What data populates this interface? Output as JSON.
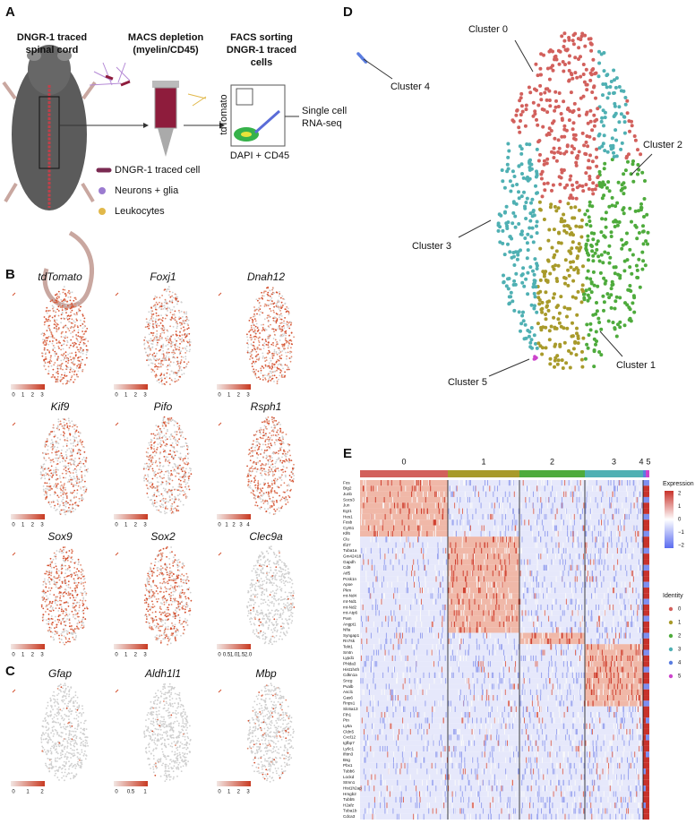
{
  "panel_a": {
    "letter": "A",
    "steps": [
      [
        "DNGR-1 traced",
        "spinal cord"
      ],
      [
        "MACS depletion",
        "(myelin/CD45)"
      ],
      [
        "FACS sorting",
        "DNGR-1 traced",
        "cells"
      ]
    ],
    "facs_y": "tdTomato",
    "facs_x": "DAPI + CD45",
    "output": [
      "Single cell",
      "RNA-seq"
    ],
    "legend": [
      "DNGR-1 traced cell",
      "Neurons + glia",
      "Leukocytes"
    ]
  },
  "panel_b": {
    "letter": "B",
    "genes": [
      {
        "name": "tdTomato",
        "scale": [
          "0",
          "1",
          "2",
          "3"
        ]
      },
      {
        "name": "Foxj1",
        "scale": [
          "0",
          "1",
          "2",
          "3"
        ]
      },
      {
        "name": "Dnah12",
        "scale": [
          "0",
          "1",
          "2",
          "3"
        ]
      },
      {
        "name": "Kif9",
        "scale": [
          "0",
          "1",
          "2",
          "3"
        ]
      },
      {
        "name": "Pifo",
        "scale": [
          "0",
          "1",
          "2",
          "3"
        ]
      },
      {
        "name": "Rsph1",
        "scale": [
          "0",
          "1",
          "2",
          "3",
          "4"
        ]
      },
      {
        "name": "Sox9",
        "scale": [
          "0",
          "1",
          "2",
          "3"
        ]
      },
      {
        "name": "Sox2",
        "scale": [
          "0",
          "1",
          "2",
          "3"
        ]
      },
      {
        "name": "Clec9a",
        "scale": [
          "0",
          "0.5",
          "1.0",
          "1.5",
          "2.0"
        ]
      }
    ]
  },
  "panel_c": {
    "letter": "C",
    "genes": [
      {
        "name": "Gfap",
        "scale": [
          "0",
          "1",
          "2"
        ]
      },
      {
        "name": "Aldh1l1",
        "scale": [
          "0",
          "0.5",
          "1"
        ]
      },
      {
        "name": "Mbp",
        "scale": [
          "0",
          "1",
          "2",
          "3"
        ]
      }
    ]
  },
  "panel_d": {
    "letter": "D",
    "clusters": [
      "Cluster 0",
      "Cluster 1",
      "Cluster 2",
      "Cluster 3",
      "Cluster 4",
      "Cluster 5"
    ]
  },
  "panel_e": {
    "letter": "E",
    "groups": [
      "0",
      "1",
      "2",
      "3",
      "4",
      "5"
    ],
    "genes": [
      "Fos",
      "Btg2",
      "Junb",
      "Socs3",
      "Jun",
      "Egr1",
      "Hes1",
      "Fosb",
      "Cyr61",
      "Klf6",
      "Clu",
      "Ifi27",
      "Tuba1a",
      "Gm42418",
      "Gapdh",
      "Cd9",
      "Atf5",
      "Pcsk1n",
      "Apoe",
      "Pkm",
      "mt-Nd4",
      "mt-Nd1",
      "mt-Nd2",
      "mt-Atp6",
      "Pam",
      "Angpt1",
      "Nfia",
      "Syngap1",
      "Rn7sk",
      "Tekt1",
      "Smtn",
      "Lypd1",
      "Phlda3",
      "Hist1h4h",
      "Cdkn1a",
      "Sncg",
      "Pvalb",
      "Ascl1",
      "Gas6",
      "Rnps1",
      "Slc6a13",
      "Fth1",
      "Ptn",
      "Ly6a",
      "Cldn5",
      "Cxcl12",
      "Igfbp7",
      "Ly6c1",
      "Ifitm3",
      "Bsg",
      "Pbx1",
      "Tubb6",
      "Lockd",
      "Stmn1",
      "Hist1h2ap",
      "Hmgb2",
      "Tubb5",
      "H2afz",
      "Tuba1b",
      "Cdca3"
    ],
    "expression": {
      "title": "Expression",
      "labels": [
        "2",
        "1",
        "0",
        "−1",
        "−2"
      ]
    },
    "identity": {
      "title": "Identity",
      "items": [
        {
          "name": "0",
          "color": "#d2605c"
        },
        {
          "name": "1",
          "color": "#a89a2a"
        },
        {
          "name": "2",
          "color": "#4eab3c"
        },
        {
          "name": "3",
          "color": "#4fb0b3"
        },
        {
          "name": "4",
          "color": "#5a7de0"
        },
        {
          "name": "5",
          "color": "#cc44cc"
        }
      ]
    }
  }
}
